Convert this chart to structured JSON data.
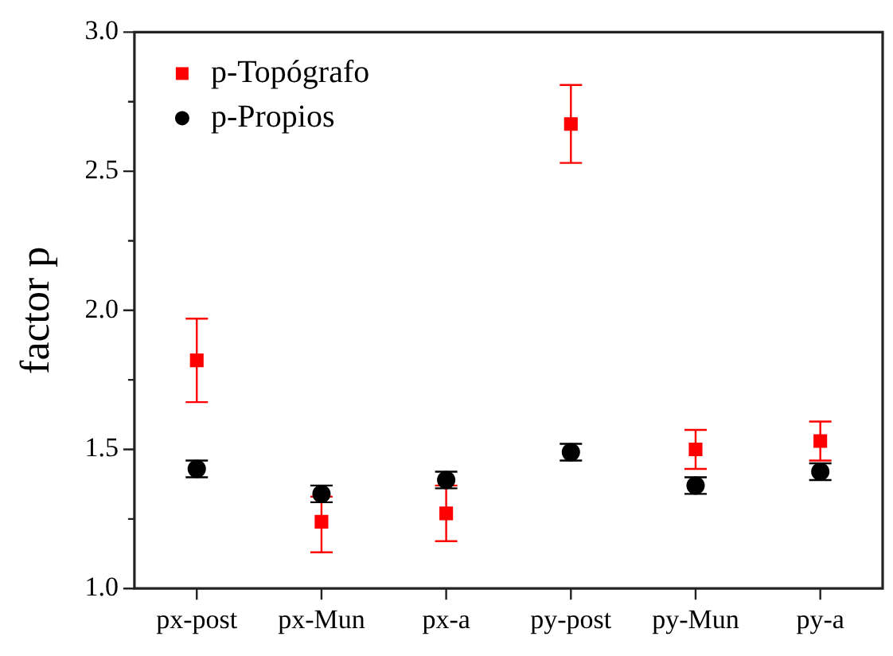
{
  "chart_data": {
    "type": "scatter",
    "ylabel": "factor p",
    "categories": [
      "px-post",
      "px-Mun",
      "px-a",
      "py-post",
      "py-Mun",
      "py-a"
    ],
    "series": [
      {
        "name": "p-Topógrafo",
        "color": "#ff0000",
        "marker": "square",
        "values": [
          1.82,
          1.24,
          1.27,
          2.67,
          1.5,
          1.53
        ],
        "errors": [
          [
            1.67,
            1.97
          ],
          [
            1.13,
            1.33
          ],
          [
            1.17,
            1.37
          ],
          [
            2.53,
            2.81
          ],
          [
            1.43,
            1.57
          ],
          [
            1.46,
            1.6
          ]
        ]
      },
      {
        "name": "p-Propios",
        "color": "#000000",
        "marker": "circle",
        "values": [
          1.43,
          1.34,
          1.39,
          1.49,
          1.37,
          1.42
        ],
        "errors": [
          [
            1.4,
            1.46
          ],
          [
            1.31,
            1.37
          ],
          [
            1.36,
            1.42
          ],
          [
            1.46,
            1.52
          ],
          [
            1.34,
            1.4
          ],
          [
            1.39,
            1.45
          ]
        ]
      }
    ],
    "ylim": [
      1.0,
      3.0
    ],
    "yticks": [
      {
        "value": 1,
        "label": "1.0"
      },
      {
        "value": 1.25,
        "label": null
      },
      {
        "value": 1.5,
        "label": "1.5"
      },
      {
        "value": 1.75,
        "label": null
      },
      {
        "value": 2,
        "label": "2.0"
      },
      {
        "value": 2.25,
        "label": null
      },
      {
        "value": 2.5,
        "label": "2.5"
      },
      {
        "value": 2.75,
        "label": null
      },
      {
        "value": 3,
        "label": "3.0"
      }
    ],
    "grid": false,
    "legend": "top left"
  }
}
